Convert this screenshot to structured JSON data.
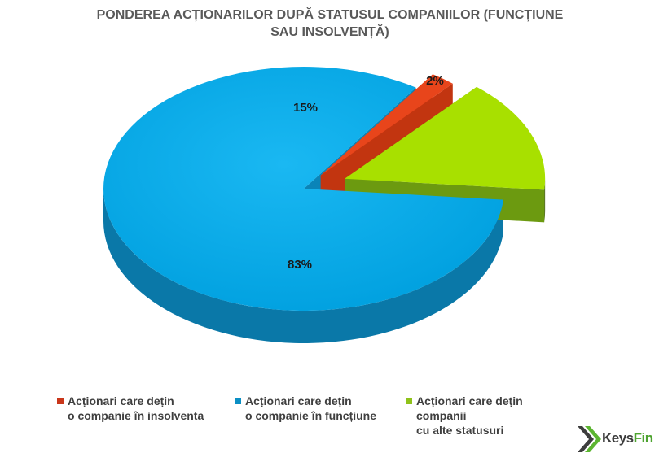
{
  "title": {
    "line1": "PONDEREA ACȚIONARILOR DUPĂ STATUSUL COMPANIILOR (FUNCȚIUNE",
    "line2": "SAU INSOLVENȚĂ)"
  },
  "chart_data": {
    "type": "pie",
    "style": "3d-exploded",
    "title": "PONDEREA ACȚIONARILOR DUPĂ STATUSUL COMPANIILOR (FUNCȚIUNE SAU INSOLVENȚĂ)",
    "labels": [
      "Acționari care dețin o companie în insolventa",
      "Acționari care dețin o companie în funcțiune",
      "Acționari care dețin companii cu alte statusuri"
    ],
    "values": [
      2,
      83,
      15
    ],
    "data_labels": [
      "2%",
      "83%",
      "15%"
    ],
    "colors": [
      "#e8451b",
      "#00a6e6",
      "#a8e000"
    ],
    "legend_position": "bottom"
  },
  "legend": [
    {
      "line1": "Acționari care dețin",
      "line2": "o companie în insolventa",
      "line3": "",
      "color": "#c9361a"
    },
    {
      "line1": "Acționari care dețin",
      "line2": "o companie în funcțiune",
      "line3": "",
      "color": "#0b8fc4"
    },
    {
      "line1": "Acționari care dețin",
      "line2": "companii",
      "line3": "cu alte statusuri",
      "color": "#8fc21a"
    }
  ],
  "logo": {
    "keys": "Keys",
    "fin": "Fin"
  }
}
